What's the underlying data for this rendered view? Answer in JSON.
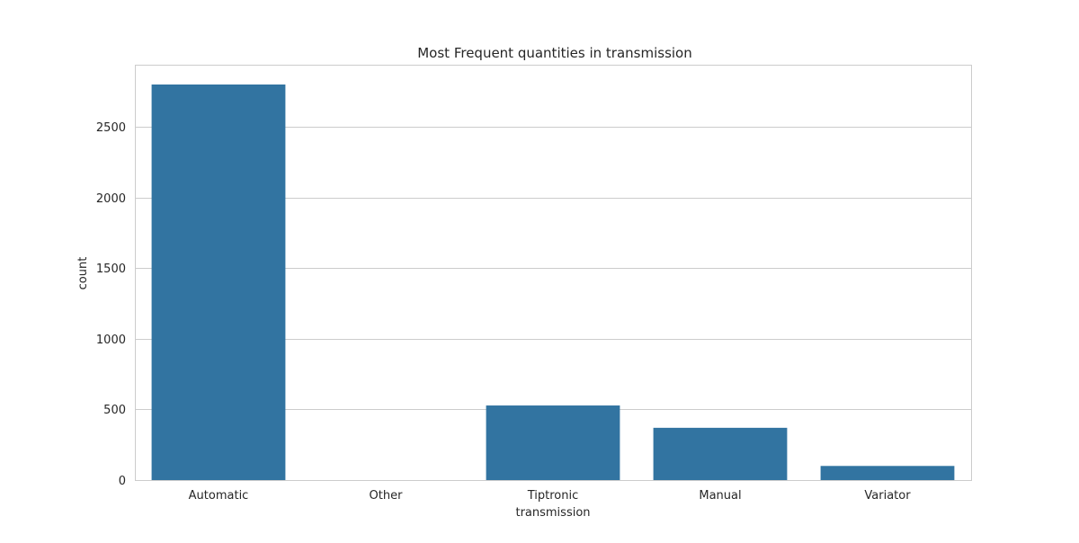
{
  "chart_data": {
    "type": "bar",
    "title": "Most Frequent quantities in transmission",
    "xlabel": "transmission",
    "ylabel": "count",
    "categories": [
      "Automatic",
      "Other",
      "Tiptronic",
      "Manual",
      "Variator"
    ],
    "values": [
      2800,
      0,
      528,
      370,
      100
    ],
    "ylim": [
      0,
      2940
    ],
    "yticks": [
      0,
      500,
      1000,
      1500,
      2000,
      2500
    ],
    "grid": true,
    "bar_color": "#3274a1"
  }
}
